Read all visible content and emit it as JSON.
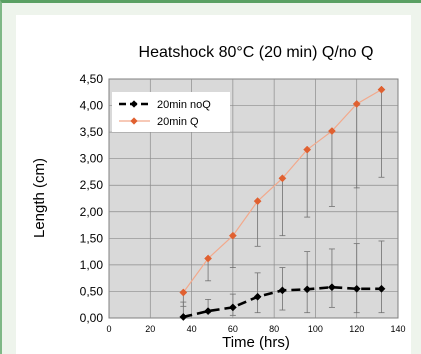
{
  "chart_data": {
    "type": "line",
    "title": "Heatshock 80°C (20 min) Q/no Q",
    "xlabel": "Time (hrs)",
    "ylabel": "Length (cm)",
    "xlim": [
      0,
      140
    ],
    "ylim": [
      0,
      4.5
    ],
    "x_ticks": [
      "0",
      "20",
      "40",
      "60",
      "80",
      "100",
      "120",
      "140"
    ],
    "y_ticks": [
      "0,00",
      "0,50",
      "1,00",
      "1,50",
      "2,00",
      "2,50",
      "3,00",
      "3,50",
      "4,00",
      "4,50"
    ],
    "x_grid": [
      0,
      20,
      40,
      60,
      80,
      100,
      120,
      140
    ],
    "y_grid": [
      0,
      0.5,
      1,
      1.5,
      2,
      2.5,
      3,
      3.5,
      4,
      4.5
    ],
    "grid": true,
    "legend_position": "top-left",
    "series": [
      {
        "name": "20min noQ",
        "color": "#000000",
        "style": "dashed-thick",
        "marker": "diamond",
        "x": [
          36,
          48,
          60,
          72,
          84,
          96,
          108,
          120,
          132
        ],
        "y": [
          0.02,
          0.13,
          0.2,
          0.4,
          0.52,
          0.54,
          0.58,
          0.55,
          0.55
        ],
        "err_upper": [
          0.3,
          0.35,
          0.45,
          0.85,
          0.95,
          1.25,
          1.3,
          1.4,
          1.45
        ],
        "err_lower": [
          0.02,
          0.1,
          0.05,
          0.1,
          0.15,
          0.1,
          0.2,
          0.1,
          0.1
        ]
      },
      {
        "name": "20min Q",
        "color": "#e06030",
        "line_color": "#f2a98c",
        "style": "solid",
        "marker": "diamond",
        "x": [
          36,
          48,
          60,
          72,
          84,
          96,
          108,
          120,
          132
        ],
        "y": [
          0.48,
          1.12,
          1.55,
          2.2,
          2.63,
          3.17,
          3.52,
          4.03,
          4.3
        ],
        "err_upper": [
          0.48,
          1.12,
          1.55,
          2.2,
          2.63,
          3.17,
          3.52,
          4.03,
          4.3
        ],
        "err_lower": [
          0.22,
          0.7,
          0.95,
          1.35,
          1.55,
          1.9,
          2.1,
          2.45,
          2.65
        ]
      }
    ]
  }
}
